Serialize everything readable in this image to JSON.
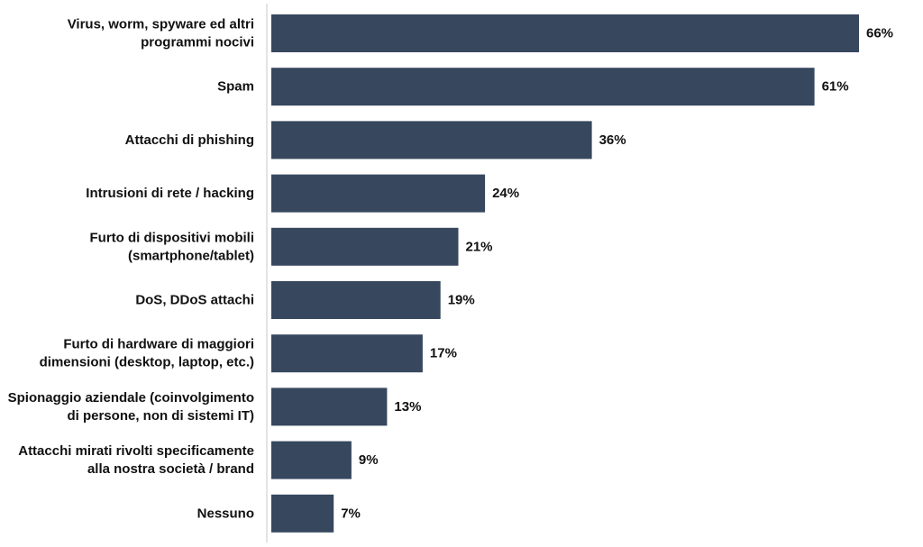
{
  "chart_data": {
    "type": "bar",
    "orientation": "horizontal",
    "title": "",
    "xlabel": "",
    "ylabel": "",
    "categories": [
      "Virus, worm, spyware ed altri\nprogrammi nocivi",
      "Spam",
      "Attacchi di phishing",
      "Intrusioni di rete / hacking",
      "Furto di dispositivi mobili\n(smartphone/tablet)",
      "DoS, DDoS attachi",
      "Furto di hardware di maggiori\ndimensioni (desktop, laptop, etc.)",
      "Spionaggio aziendale (coinvolgimento\ndi persone, non di sistemi IT)",
      "Attacchi mirati rivolti specificamente\nalla nostra società / brand",
      "Nessuno"
    ],
    "values": [
      66,
      61,
      36,
      24,
      21,
      19,
      17,
      13,
      9,
      7
    ],
    "value_labels": [
      "66%",
      "61%",
      "36%",
      "24%",
      "21%",
      "19%",
      "17%",
      "13%",
      "9%",
      "7%"
    ],
    "unit": "%",
    "xlim": [
      0,
      70
    ],
    "grid": false,
    "legend": "none",
    "bar_color": "#36475e",
    "axis_color": "#c8c8c8"
  }
}
